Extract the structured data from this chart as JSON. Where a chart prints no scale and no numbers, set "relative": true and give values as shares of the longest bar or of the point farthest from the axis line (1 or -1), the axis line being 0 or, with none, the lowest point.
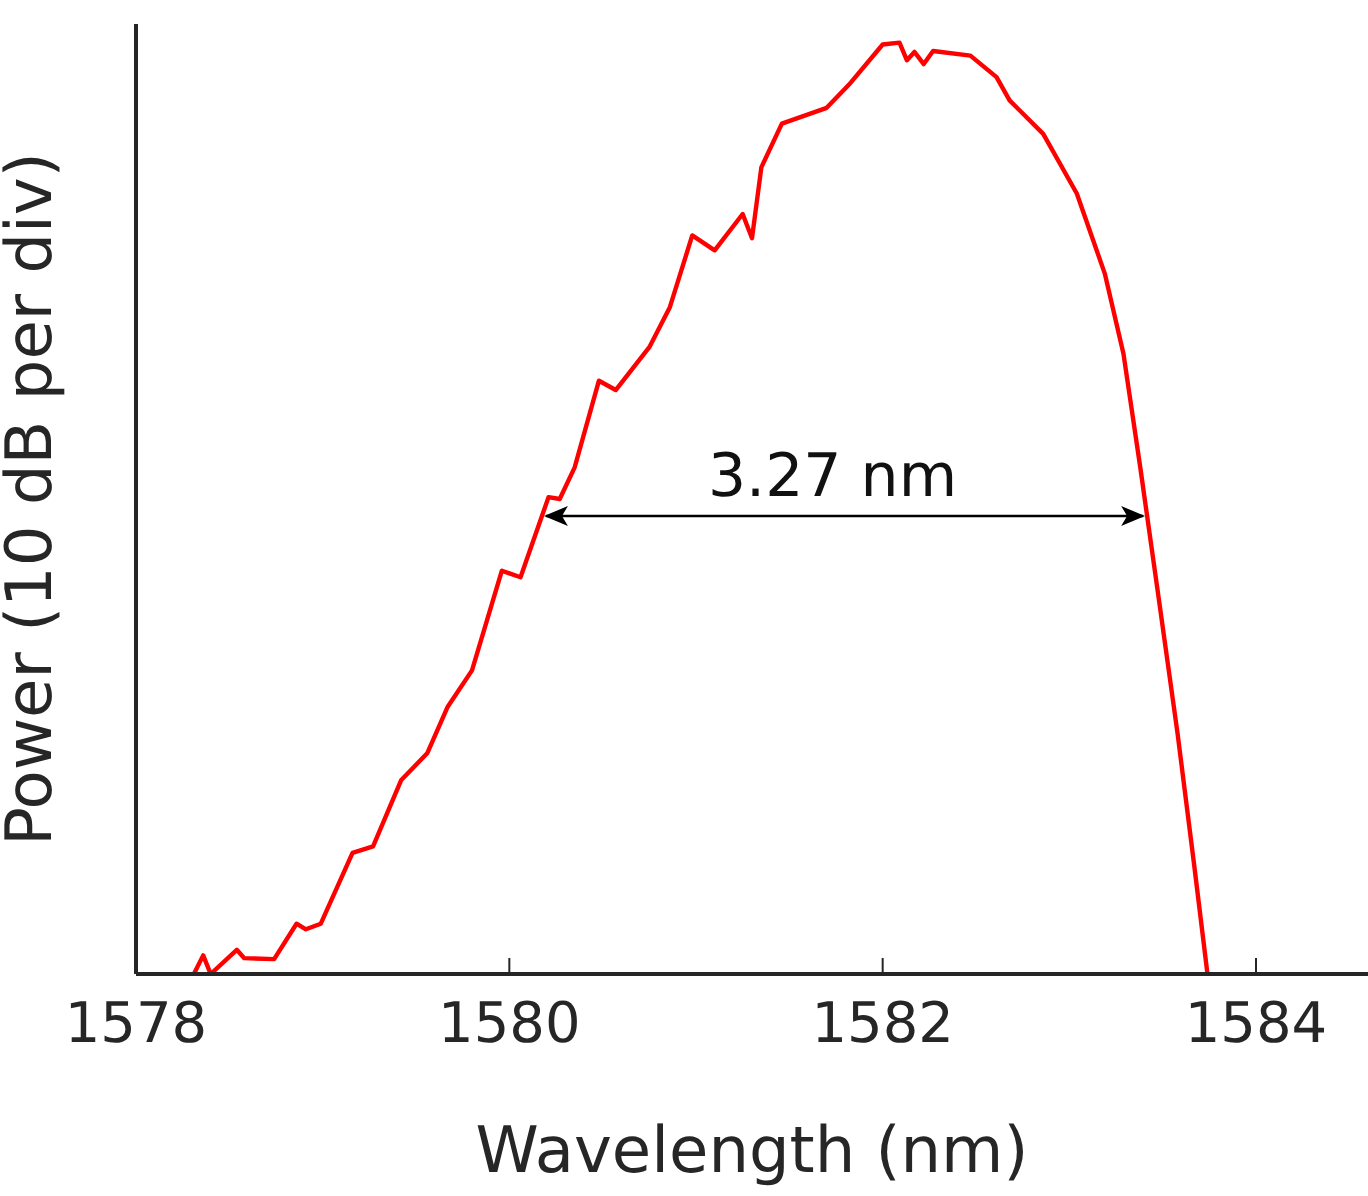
{
  "chart_data": {
    "type": "line",
    "xlabel": "Wavelength (nm)",
    "ylabel": "Power (10 dB per div)",
    "relative": true,
    "xlim": [
      1578,
      1584.6
    ],
    "xticks": [
      1578,
      1580,
      1582,
      1584
    ],
    "annotations": [
      "3.27 nm"
    ],
    "series": [
      {
        "color": "#ff0000",
        "x": [
          1578.31,
          1578.36,
          1578.4,
          1578.54,
          1578.58,
          1578.74,
          1578.86,
          1578.91,
          1578.99,
          1579.16,
          1579.27,
          1579.42,
          1579.56,
          1579.67,
          1579.8,
          1579.96,
          1580.06,
          1580.21,
          1580.27,
          1580.35,
          1580.48,
          1580.57,
          1580.75,
          1580.86,
          1580.98,
          1581.1,
          1581.25,
          1581.3,
          1581.35,
          1581.46,
          1581.7,
          1581.82,
          1582.0,
          1582.09,
          1582.13,
          1582.17,
          1582.22,
          1582.27,
          1582.47,
          1582.61,
          1582.68,
          1582.86,
          1583.04,
          1583.19,
          1583.29,
          1583.38,
          1583.47,
          1583.58,
          1583.67,
          1583.74
        ],
        "values": [
          0.0,
          0.02,
          0.0,
          0.026,
          0.017,
          0.016,
          0.054,
          0.048,
          0.054,
          0.13,
          0.137,
          0.208,
          0.237,
          0.287,
          0.326,
          0.433,
          0.426,
          0.512,
          0.51,
          0.544,
          0.637,
          0.627,
          0.673,
          0.716,
          0.793,
          0.777,
          0.816,
          0.79,
          0.866,
          0.913,
          0.93,
          0.955,
          0.998,
          1.0,
          0.981,
          0.99,
          0.977,
          0.991,
          0.986,
          0.963,
          0.938,
          0.902,
          0.838,
          0.752,
          0.666,
          0.544,
          0.416,
          0.258,
          0.115,
          0.0
        ]
      }
    ],
    "marker": "none",
    "line_style": "solid",
    "grid": false,
    "legend": false
  }
}
